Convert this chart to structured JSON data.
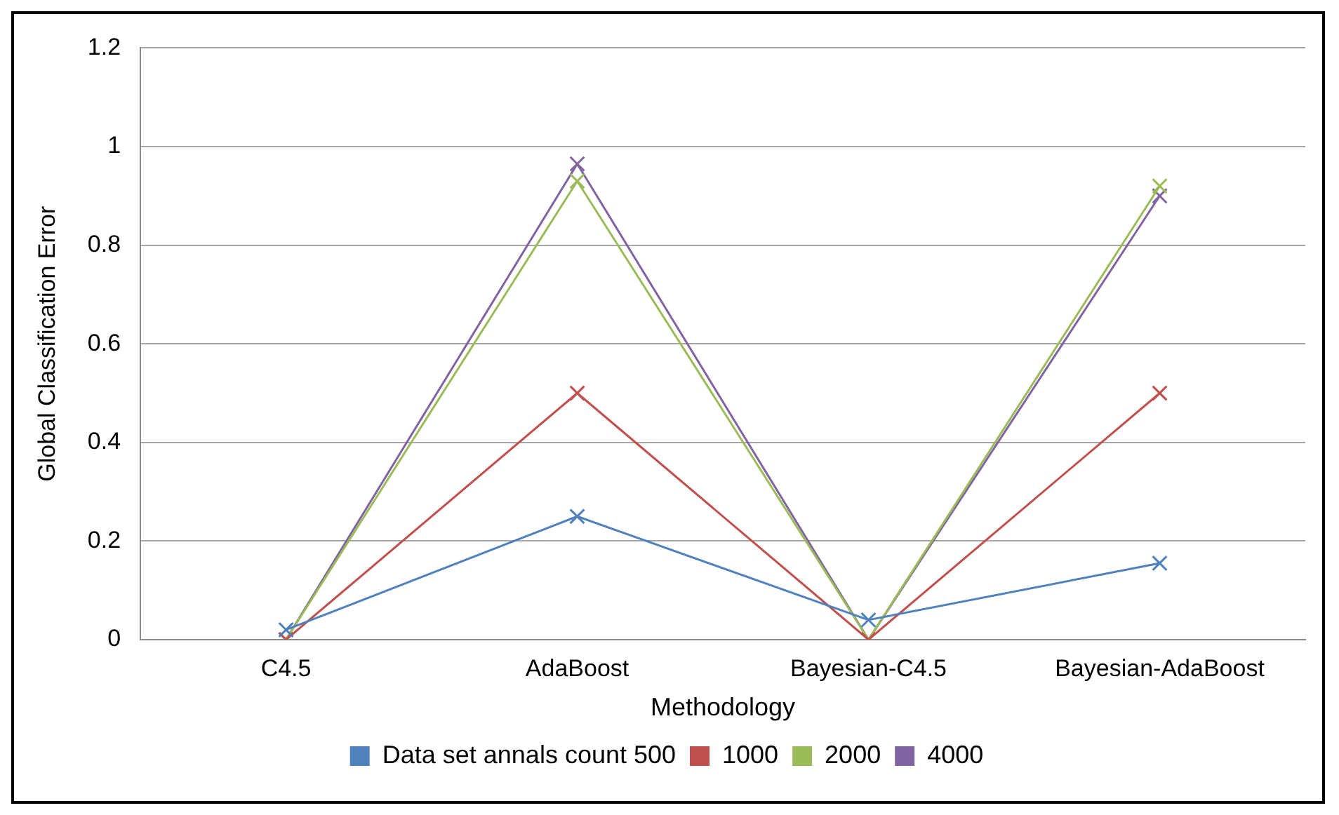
{
  "chart_data": {
    "type": "line",
    "xlabel": "Methodology",
    "ylabel": "Global Classification Error",
    "categories": [
      "C4.5",
      "AdaBoost",
      "Bayesian-C4.5",
      "Bayesian-AdaBoost"
    ],
    "series": [
      {
        "name": "Data set annals count 500",
        "color": "#4f81bd",
        "values": [
          0.02,
          0.25,
          0.04,
          0.155
        ]
      },
      {
        "name": "1000",
        "color": "#c0504d",
        "values": [
          0,
          0.5,
          0,
          0.5
        ]
      },
      {
        "name": "2000",
        "color": "#9bbb59",
        "values": [
          0,
          0.93,
          0,
          0.92
        ]
      },
      {
        "name": "4000",
        "color": "#8064a2",
        "values": [
          0,
          0.965,
          0,
          0.9
        ]
      }
    ],
    "ylim": [
      0,
      1.2
    ],
    "yticks": [
      0,
      0.2,
      0.4,
      0.6,
      0.8,
      1,
      1.2
    ],
    "grid": "y",
    "legend": "bottom",
    "marker": "cross",
    "line_style": "solid"
  }
}
